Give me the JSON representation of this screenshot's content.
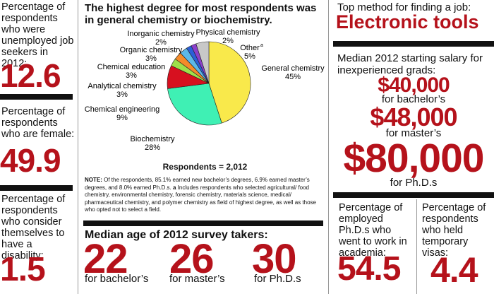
{
  "chart_data": {
    "type": "pie",
    "title": "The highest degree for most respondents was in general chemistry or biochemistry.",
    "categories": [
      "General chemistry",
      "Biochemistry",
      "Chemical engineering",
      "Analytical chemistry",
      "Chemical education",
      "Organic chemistry",
      "Inorganic chemistry",
      "Physical chemistry",
      "Other"
    ],
    "values": [
      45,
      28,
      9,
      3,
      3,
      3,
      2,
      2,
      5
    ],
    "value_labels": [
      "45%",
      "28%",
      "9%",
      "3%",
      "3%",
      "3%",
      "2%",
      "2%",
      "5%"
    ],
    "colors": [
      "#f9e94b",
      "#3ff0b4",
      "#d7101f",
      "#9ee04a",
      "#f48b2a",
      "#5cb8e8",
      "#2b5fd8",
      "#8b3fca",
      "#c8c8c8"
    ],
    "other_footnote": "a",
    "respondents": "Respondents = 2,012",
    "note_label": "NOTE:",
    "note_text": "Of the respondents, 85.1% earned new bachelor’s degrees, 6.9% earned master’s degrees, and 8.0% earned Ph.D.s.",
    "note_mark": "a",
    "note_text2": "Includes respondents who selected agricultural/ food chemistry, environmental chemistry, forensic chemistry, materials science, medical/ pharmaceutical chemistry, and polymer chemistry as field of highest degree, as well as those who opted not to select a field."
  },
  "left": [
    {
      "label": "Percentage of respondents who were unemployed job seekers in 2012:",
      "value": 12.6
    },
    {
      "label": "Percentage of respondents who are female:",
      "value": 49.9
    },
    {
      "label": "Percentage of respondents who consider themselves to have a disability:",
      "value": 1.5
    }
  ],
  "age": {
    "title": "Median age of 2012 survey takers:",
    "items": [
      {
        "value": 22,
        "label": "for bachelor’s"
      },
      {
        "value": 26,
        "label": "for master’s"
      },
      {
        "value": 30,
        "label": "for Ph.D.s"
      }
    ]
  },
  "job": {
    "label": "Top method for finding a job:",
    "value": "Electronic tools"
  },
  "salary": {
    "title": "Median 2012 starting salary for inexperienced grads:",
    "items": [
      {
        "value": "$40,000",
        "label": "for bachelor’s"
      },
      {
        "value": "$48,000",
        "label": "for master’s"
      },
      {
        "value": "$80,000",
        "label": "for Ph.D.s"
      }
    ]
  },
  "bottom_right": [
    {
      "label": "Percentage of employed Ph.D.s who went to work in academia:",
      "value": 54.5
    },
    {
      "label": "Percentage of respondents who held temporary visas:",
      "value": 4.4
    }
  ]
}
